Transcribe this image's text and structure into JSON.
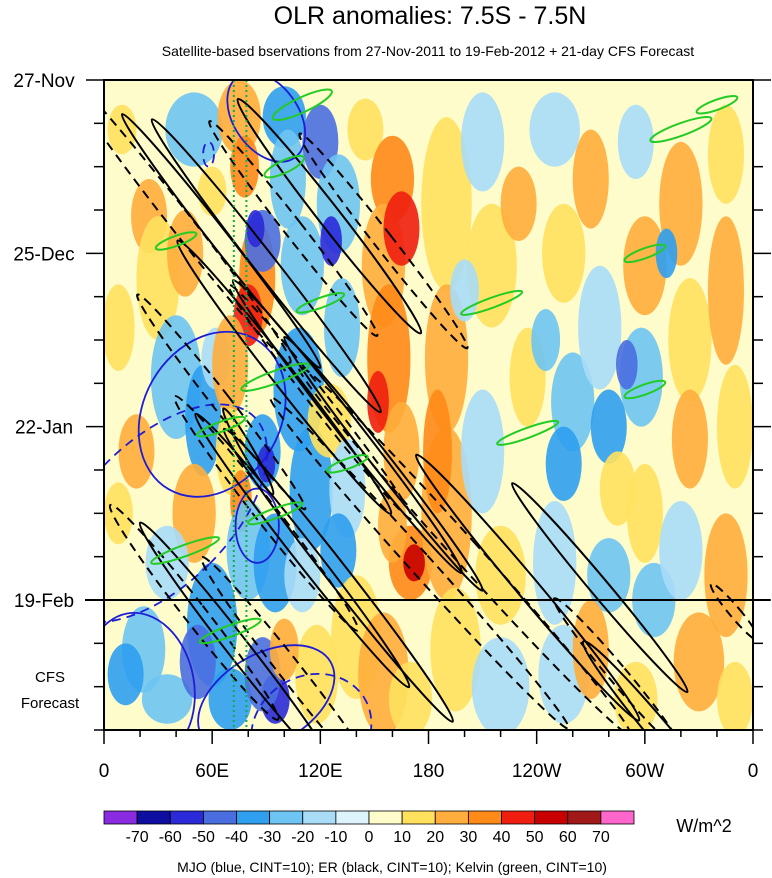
{
  "chart_data": {
    "type": "heatmap",
    "title": "OLR anomalies: 7.5S - 7.5N",
    "subtitle": "Satellite-based bservations from 27-Nov-2011 to 19-Feb-2012 + 21-day CFS Forecast",
    "x_ticks": [
      "0",
      "60E",
      "120E",
      "180",
      "120W",
      "60W",
      "0"
    ],
    "x_tick_lon": [
      0,
      60,
      120,
      180,
      240,
      300,
      360
    ],
    "y_ticks": [
      "27-Nov",
      "25-Dec",
      "22-Jan",
      "19-Feb"
    ],
    "y_tick_day": [
      0,
      28,
      56,
      84
    ],
    "xlim": [
      0,
      360
    ],
    "ylim_days": [
      0,
      105
    ],
    "observation_end_day": 84,
    "forecast_label": [
      "CFS",
      "Forecast"
    ],
    "colorbar": {
      "unit": "W/m^2",
      "levels": [
        "-70",
        "-60",
        "-50",
        "-40",
        "-30",
        "-20",
        "-10",
        "0",
        "10",
        "20",
        "30",
        "40",
        "50",
        "60",
        "70"
      ],
      "colors": [
        "#8a2be2",
        "#0e0ea0",
        "#2a2ad8",
        "#4a6ee0",
        "#2f9ff0",
        "#6ec4f2",
        "#a8dcf7",
        "#ddf4fd",
        "#fffccc",
        "#ffe15e",
        "#ffad3c",
        "#ff8a18",
        "#f01e10",
        "#c80000",
        "#a01818",
        "#ff66cc"
      ]
    },
    "footer": "MJO (blue, CINT=10); ER (black, CINT=10); Kelvin (green, CINT=10)",
    "contour_colors": {
      "mjo": "#1d1dd6",
      "er": "#000000",
      "kelvin": "#22cc22"
    },
    "reference_lines_lon": [
      72,
      79
    ]
  }
}
